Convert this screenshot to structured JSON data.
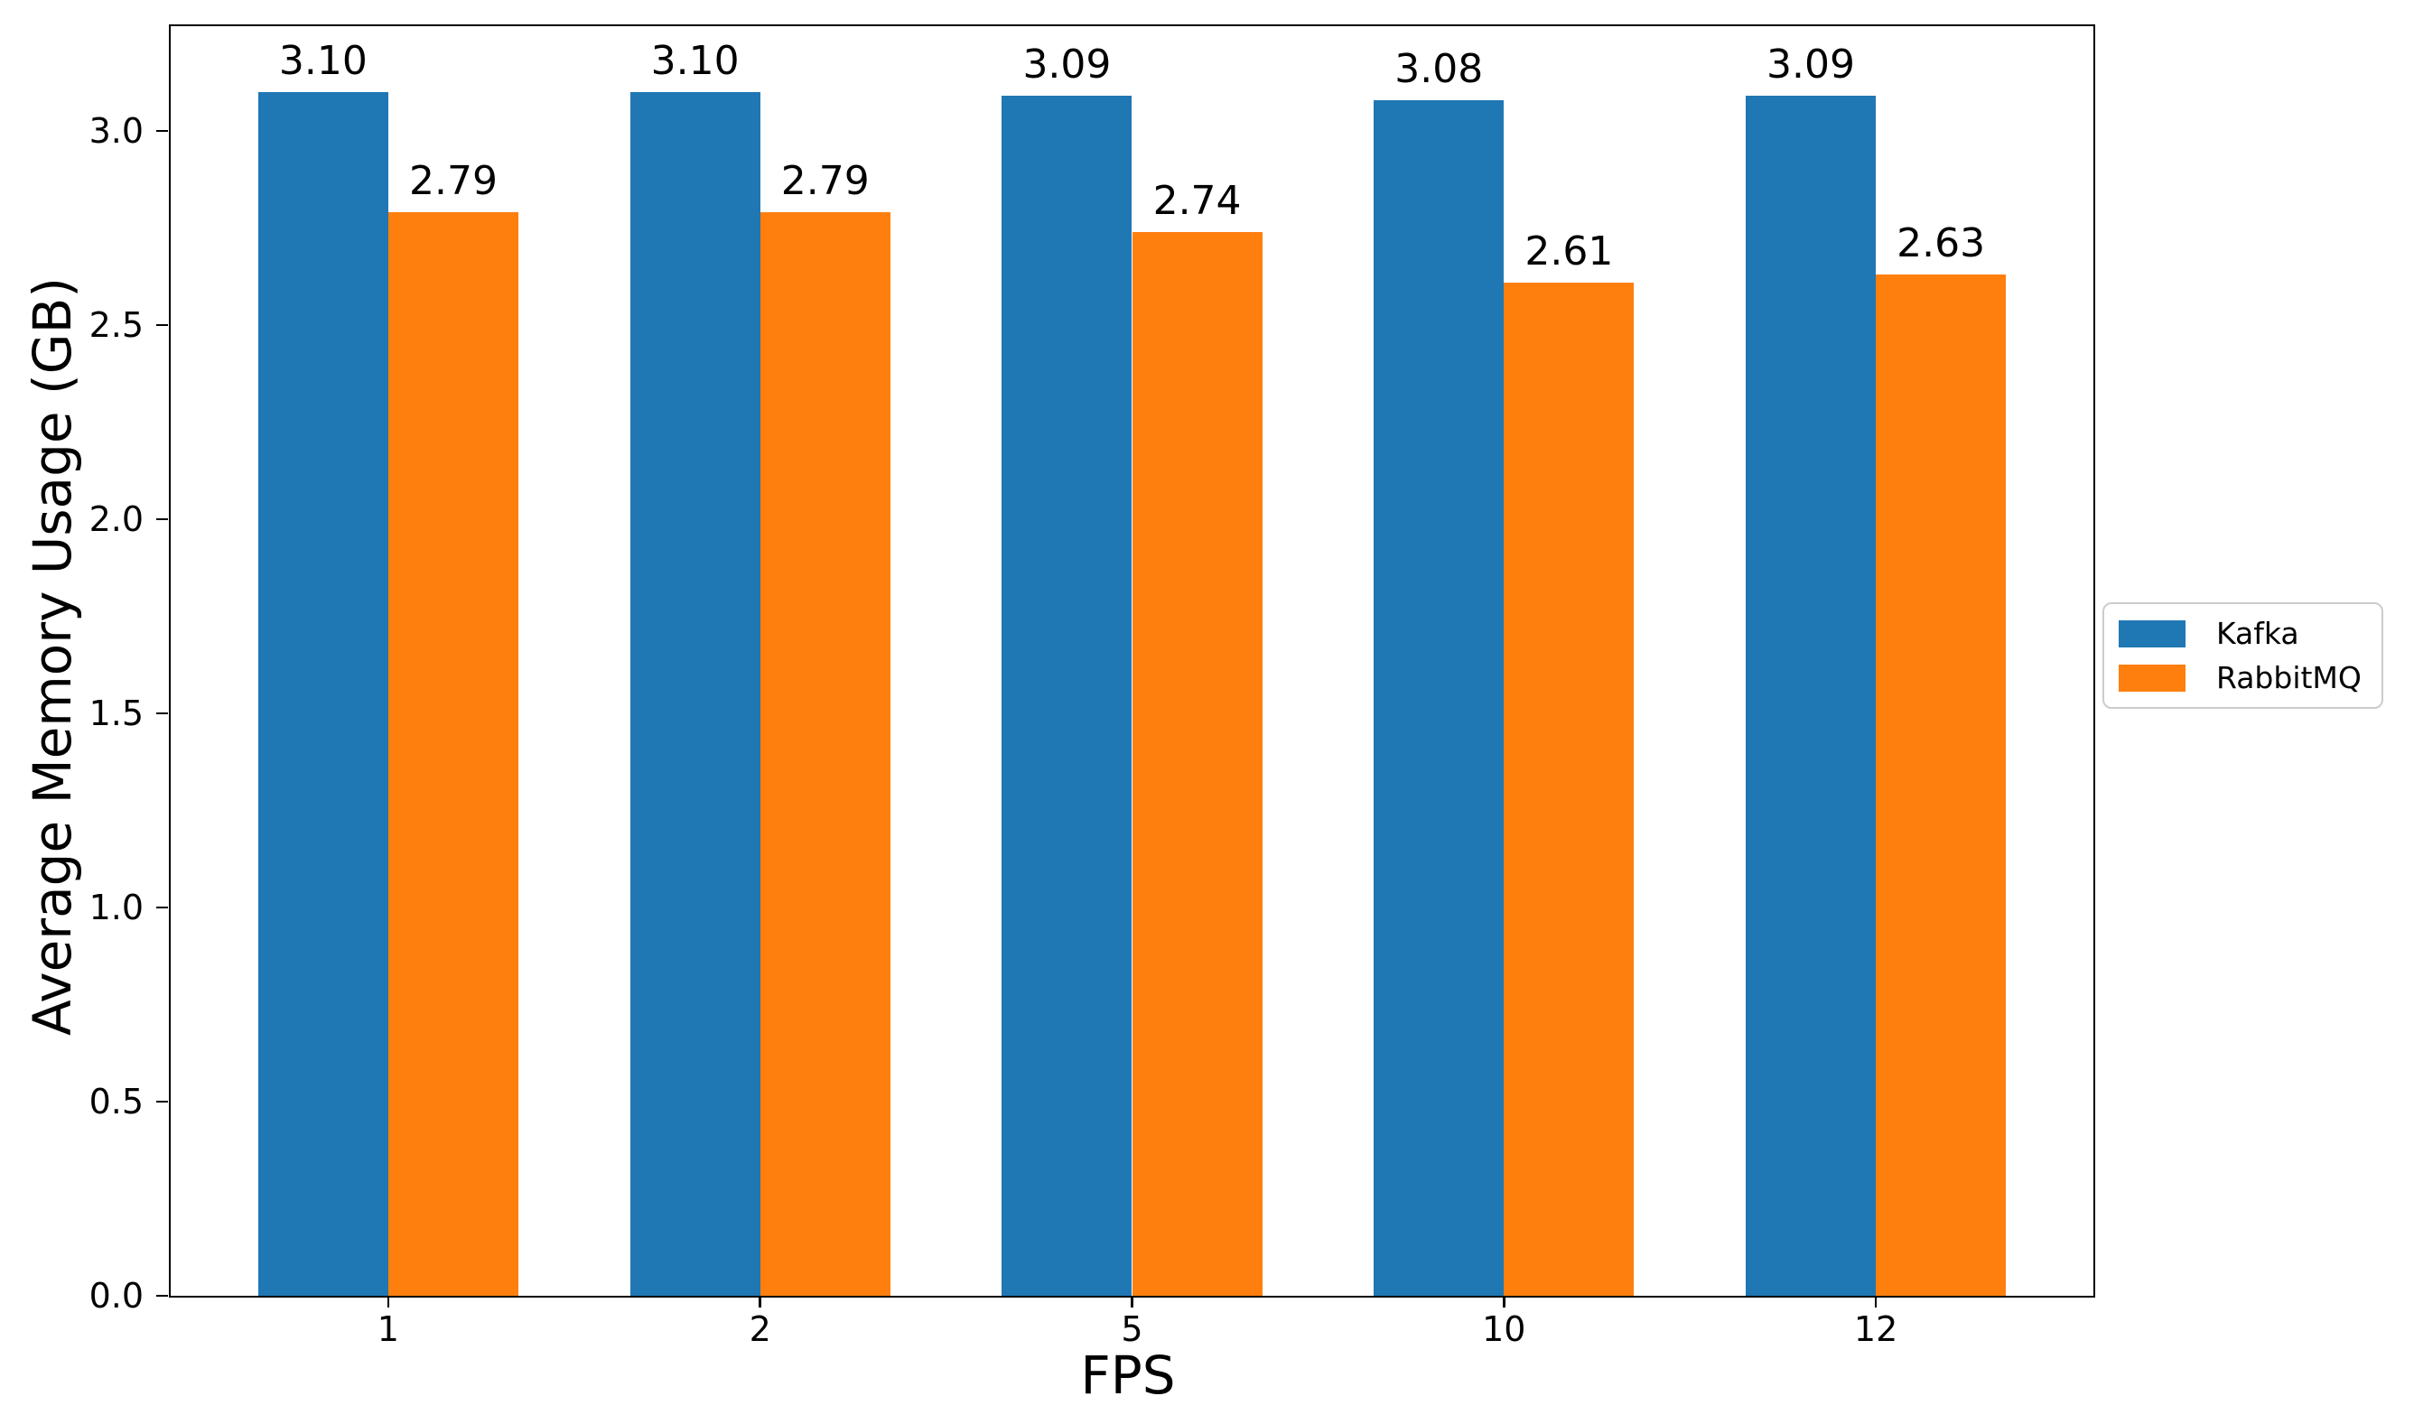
{
  "chart_data": {
    "type": "bar",
    "title": "",
    "xlabel": "FPS",
    "ylabel": "Average Memory Usage (GB)",
    "categories": [
      "1",
      "2",
      "5",
      "10",
      "12"
    ],
    "series": [
      {
        "name": "Kafka",
        "color": "#1f77b4",
        "values": [
          3.1,
          3.1,
          3.09,
          3.08,
          3.09
        ]
      },
      {
        "name": "RabbitMQ",
        "color": "#ff7f0e",
        "values": [
          2.79,
          2.79,
          2.74,
          2.61,
          2.63
        ]
      }
    ],
    "bar_value_labels": [
      [
        "3.10",
        "3.10",
        "3.09",
        "3.08",
        "3.09"
      ],
      [
        "2.79",
        "2.79",
        "2.74",
        "2.61",
        "2.63"
      ]
    ],
    "yticks": [
      "0.0",
      "0.5",
      "1.0",
      "1.5",
      "2.0",
      "2.5",
      "3.0"
    ],
    "ylim": [
      0,
      3.27
    ],
    "grid": false,
    "legend_position": "center-right-outside",
    "background_color": "#ffffff",
    "spine_color": "#000000"
  }
}
